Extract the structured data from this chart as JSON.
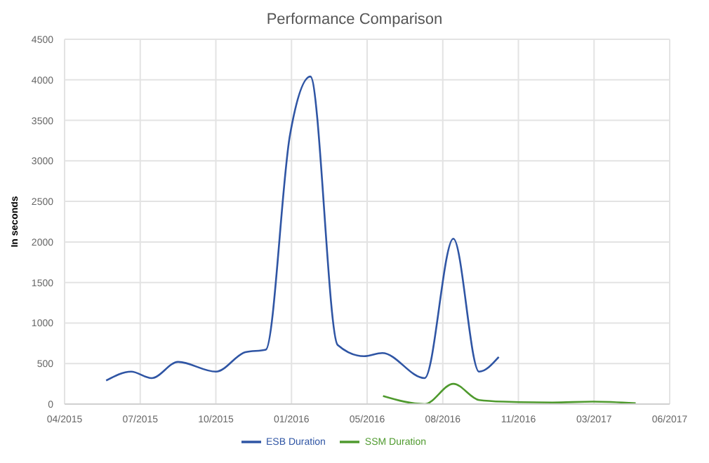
{
  "chart_data": {
    "type": "line",
    "title": "Performance Comparison",
    "ylabel": "In seconds",
    "xlim": [
      "2015-04-01",
      "2017-06-09"
    ],
    "xticks": [
      {
        "value": "2015-04-01",
        "label": "04/2015"
      },
      {
        "value": "2015-07-10",
        "label": "07/2015"
      },
      {
        "value": "2015-10-18",
        "label": "10/2015"
      },
      {
        "value": "2016-01-26",
        "label": "01/2016"
      },
      {
        "value": "2016-05-05",
        "label": "05/2016"
      },
      {
        "value": "2016-08-13",
        "label": "08/2016"
      },
      {
        "value": "2016-11-21",
        "label": "11/2016"
      },
      {
        "value": "2017-03-01",
        "label": "03/2017"
      },
      {
        "value": "2017-06-09",
        "label": "06/2017"
      }
    ],
    "ylim": [
      0,
      4500
    ],
    "yticks": [
      0,
      500,
      1000,
      1500,
      2000,
      2500,
      3000,
      3500,
      4000,
      4500
    ],
    "grid": true,
    "legend": "bottom",
    "marker": "none",
    "line_style": "solid",
    "series": [
      {
        "name": "ESB Duration",
        "color": "#2f55a4",
        "x": [
          "2015-05-26",
          "2015-06-28",
          "2015-07-25",
          "2015-08-29",
          "2015-10-18",
          "2015-11-26",
          "2015-12-23",
          "2016-01-24",
          "2016-02-20",
          "2016-03-27",
          "2016-05-01",
          "2016-05-25",
          "2016-07-20",
          "2016-08-27",
          "2016-09-30",
          "2016-10-26"
        ],
        "values": [
          290,
          400,
          320,
          520,
          400,
          640,
          670,
          3320,
          4040,
          730,
          590,
          630,
          320,
          2040,
          400,
          580
        ]
      },
      {
        "name": "SSM Duration",
        "color": "#4f9a2e",
        "x": [
          "2016-05-26",
          "2016-07-20",
          "2016-08-27",
          "2016-09-30",
          "2016-11-01",
          "2017-01-05",
          "2017-02-28",
          "2017-04-25"
        ],
        "values": [
          100,
          0,
          250,
          50,
          30,
          20,
          30,
          10
        ]
      }
    ]
  }
}
